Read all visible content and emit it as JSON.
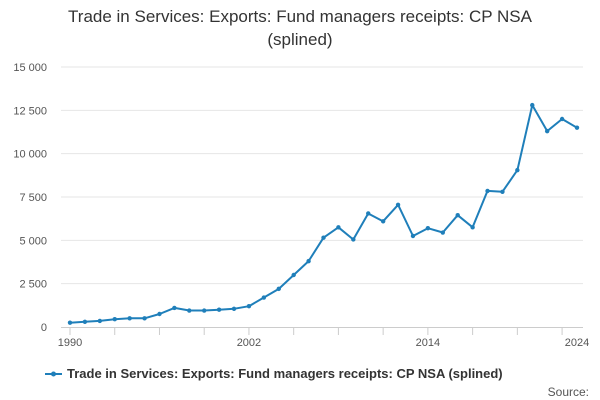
{
  "chart_data": {
    "type": "line",
    "title_line1": "Trade in Services: Exports: Fund managers receipts: CP NSA",
    "title_line2": "(splined)",
    "ylim": [
      0,
      15000
    ],
    "yticks": [
      "0",
      "2 500",
      "5 000",
      "7 500",
      "10 000",
      "12 500",
      "15 000"
    ],
    "ytick_values": [
      0,
      2500,
      5000,
      7500,
      10000,
      12500,
      15000
    ],
    "xlim": [
      1990,
      2024
    ],
    "xtick_labels": [
      "1990",
      "2002",
      "2014",
      "2024"
    ],
    "xtick_values": [
      1990,
      2002,
      2014,
      2024
    ],
    "grid": "horizontal",
    "legend_position": "bottom",
    "series": [
      {
        "name": "Trade in Services: Exports: Fund managers receipts: CP NSA (splined)",
        "color": "#1f7fba",
        "x": [
          1990,
          1991,
          1992,
          1993,
          1994,
          1995,
          1996,
          1997,
          1998,
          1999,
          2000,
          2001,
          2002,
          2003,
          2004,
          2005,
          2006,
          2007,
          2008,
          2009,
          2010,
          2011,
          2012,
          2013,
          2014,
          2015,
          2016,
          2017,
          2018,
          2019,
          2020,
          2021,
          2022,
          2023,
          2024
        ],
        "values": [
          250,
          300,
          350,
          450,
          500,
          500,
          750,
          1100,
          950,
          950,
          1000,
          1050,
          1200,
          1700,
          2200,
          3000,
          3800,
          5150,
          5750,
          5050,
          6550,
          6100,
          7050,
          5250,
          5700,
          5450,
          6450,
          5750,
          7850,
          7800,
          9050,
          12800,
          11300,
          12000,
          11500
        ]
      }
    ],
    "source_label": "Source:"
  }
}
